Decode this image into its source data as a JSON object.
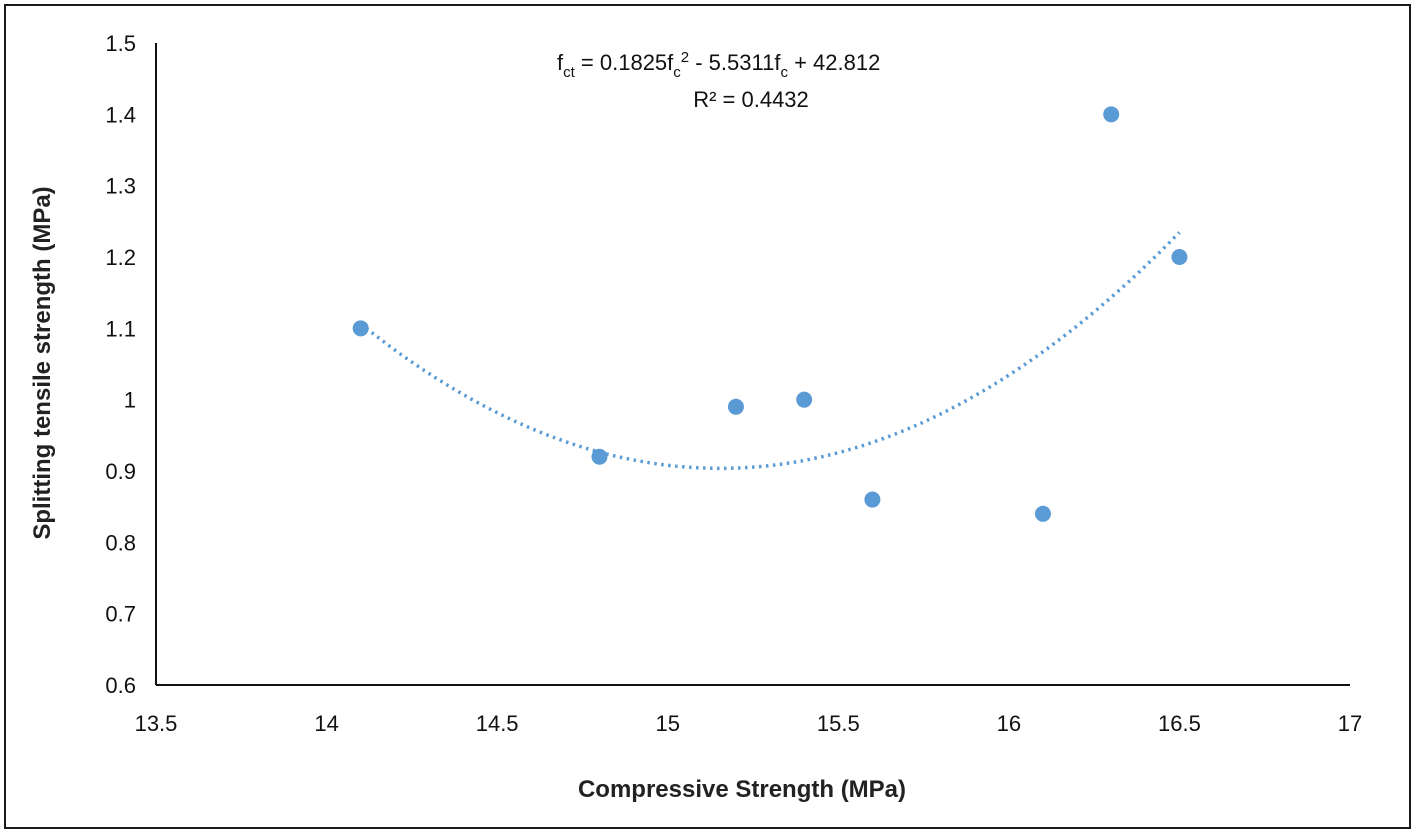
{
  "chart_data": {
    "type": "scatter",
    "xlabel": "Compressive Strength (MPa)",
    "ylabel": "Splitting tensile strength (MPa)",
    "xlim": [
      13.5,
      17
    ],
    "ylim": [
      0.6,
      1.5
    ],
    "x_ticks": [
      "13.5",
      "14",
      "14.5",
      "15",
      "15.5",
      "16",
      "16.5",
      "17"
    ],
    "y_ticks": [
      "0.6",
      "0.7",
      "0.8",
      "0.9",
      "1",
      "1.1",
      "1.2",
      "1.3",
      "1.4",
      "1.5"
    ],
    "points": [
      {
        "x": 14.1,
        "y": 1.1
      },
      {
        "x": 14.8,
        "y": 0.92
      },
      {
        "x": 15.2,
        "y": 0.99
      },
      {
        "x": 15.4,
        "y": 1.0
      },
      {
        "x": 15.6,
        "y": 0.86
      },
      {
        "x": 16.1,
        "y": 0.84
      },
      {
        "x": 16.3,
        "y": 1.4
      },
      {
        "x": 16.5,
        "y": 1.2
      }
    ],
    "trendline": {
      "type": "polynomial",
      "coefficients": [
        0.1825,
        -5.5311,
        42.812
      ],
      "x_range": [
        14.1,
        16.5
      ],
      "style": "dotted"
    },
    "equation": {
      "lhs": "f",
      "lhs_sub": "ct",
      "eq1": " = 0.1825f",
      "sub1": "c",
      "sup1": "2",
      "eq2": " - 5.5311f",
      "sub2": "c",
      "eq3": " + 42.812"
    },
    "r_squared": "R² = 0.4432",
    "grid": false,
    "legend": "none",
    "colors": {
      "marker": "#5b9bd5",
      "trendline": "#5b9bd5",
      "axis": "#111111"
    }
  }
}
